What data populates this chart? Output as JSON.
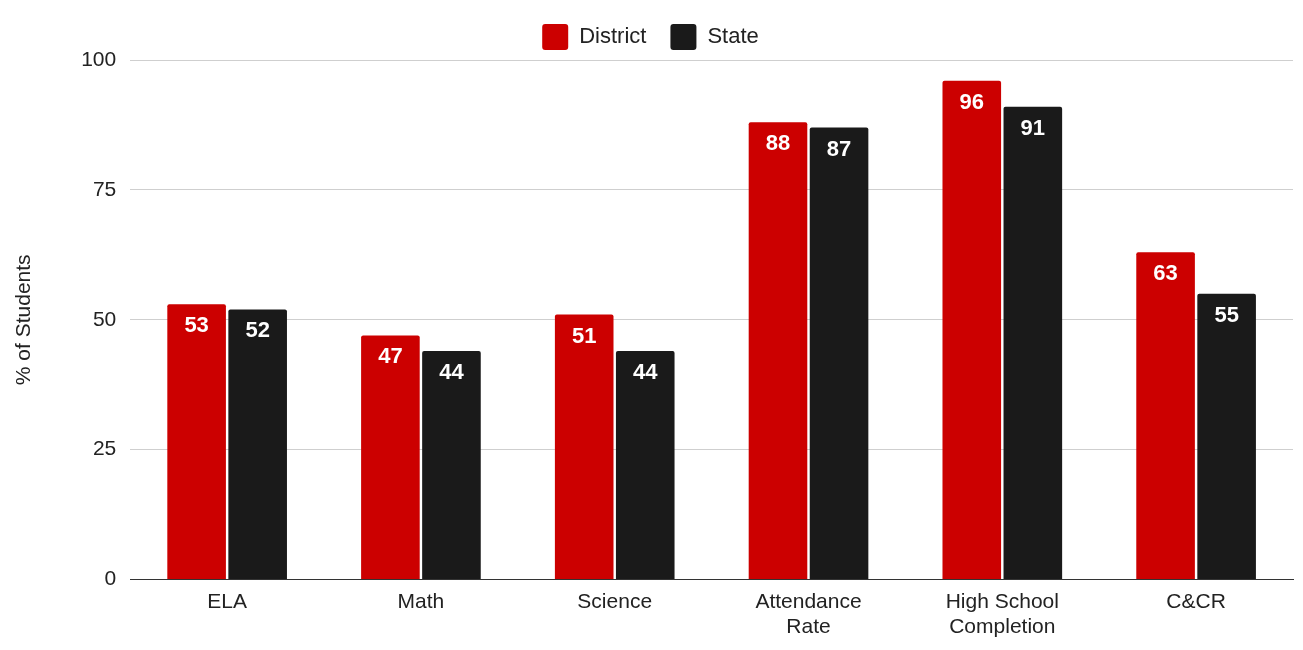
{
  "chart_data": {
    "type": "bar",
    "ylabel": "% of Students",
    "categories": [
      "ELA",
      "Math",
      "Science",
      "Attendance Rate",
      "High School Completion",
      "C&CR"
    ],
    "series": [
      {
        "name": "District",
        "color": "#cc0000",
        "values": [
          53,
          47,
          51,
          88,
          96,
          63
        ]
      },
      {
        "name": "State",
        "color": "#1a1a1a",
        "values": [
          52,
          44,
          44,
          87,
          91,
          55
        ]
      }
    ],
    "ylim": [
      0,
      100
    ],
    "yticks": [
      0,
      25,
      50,
      75,
      100
    ],
    "grid": "y",
    "legend": "top",
    "data_labels": true
  }
}
